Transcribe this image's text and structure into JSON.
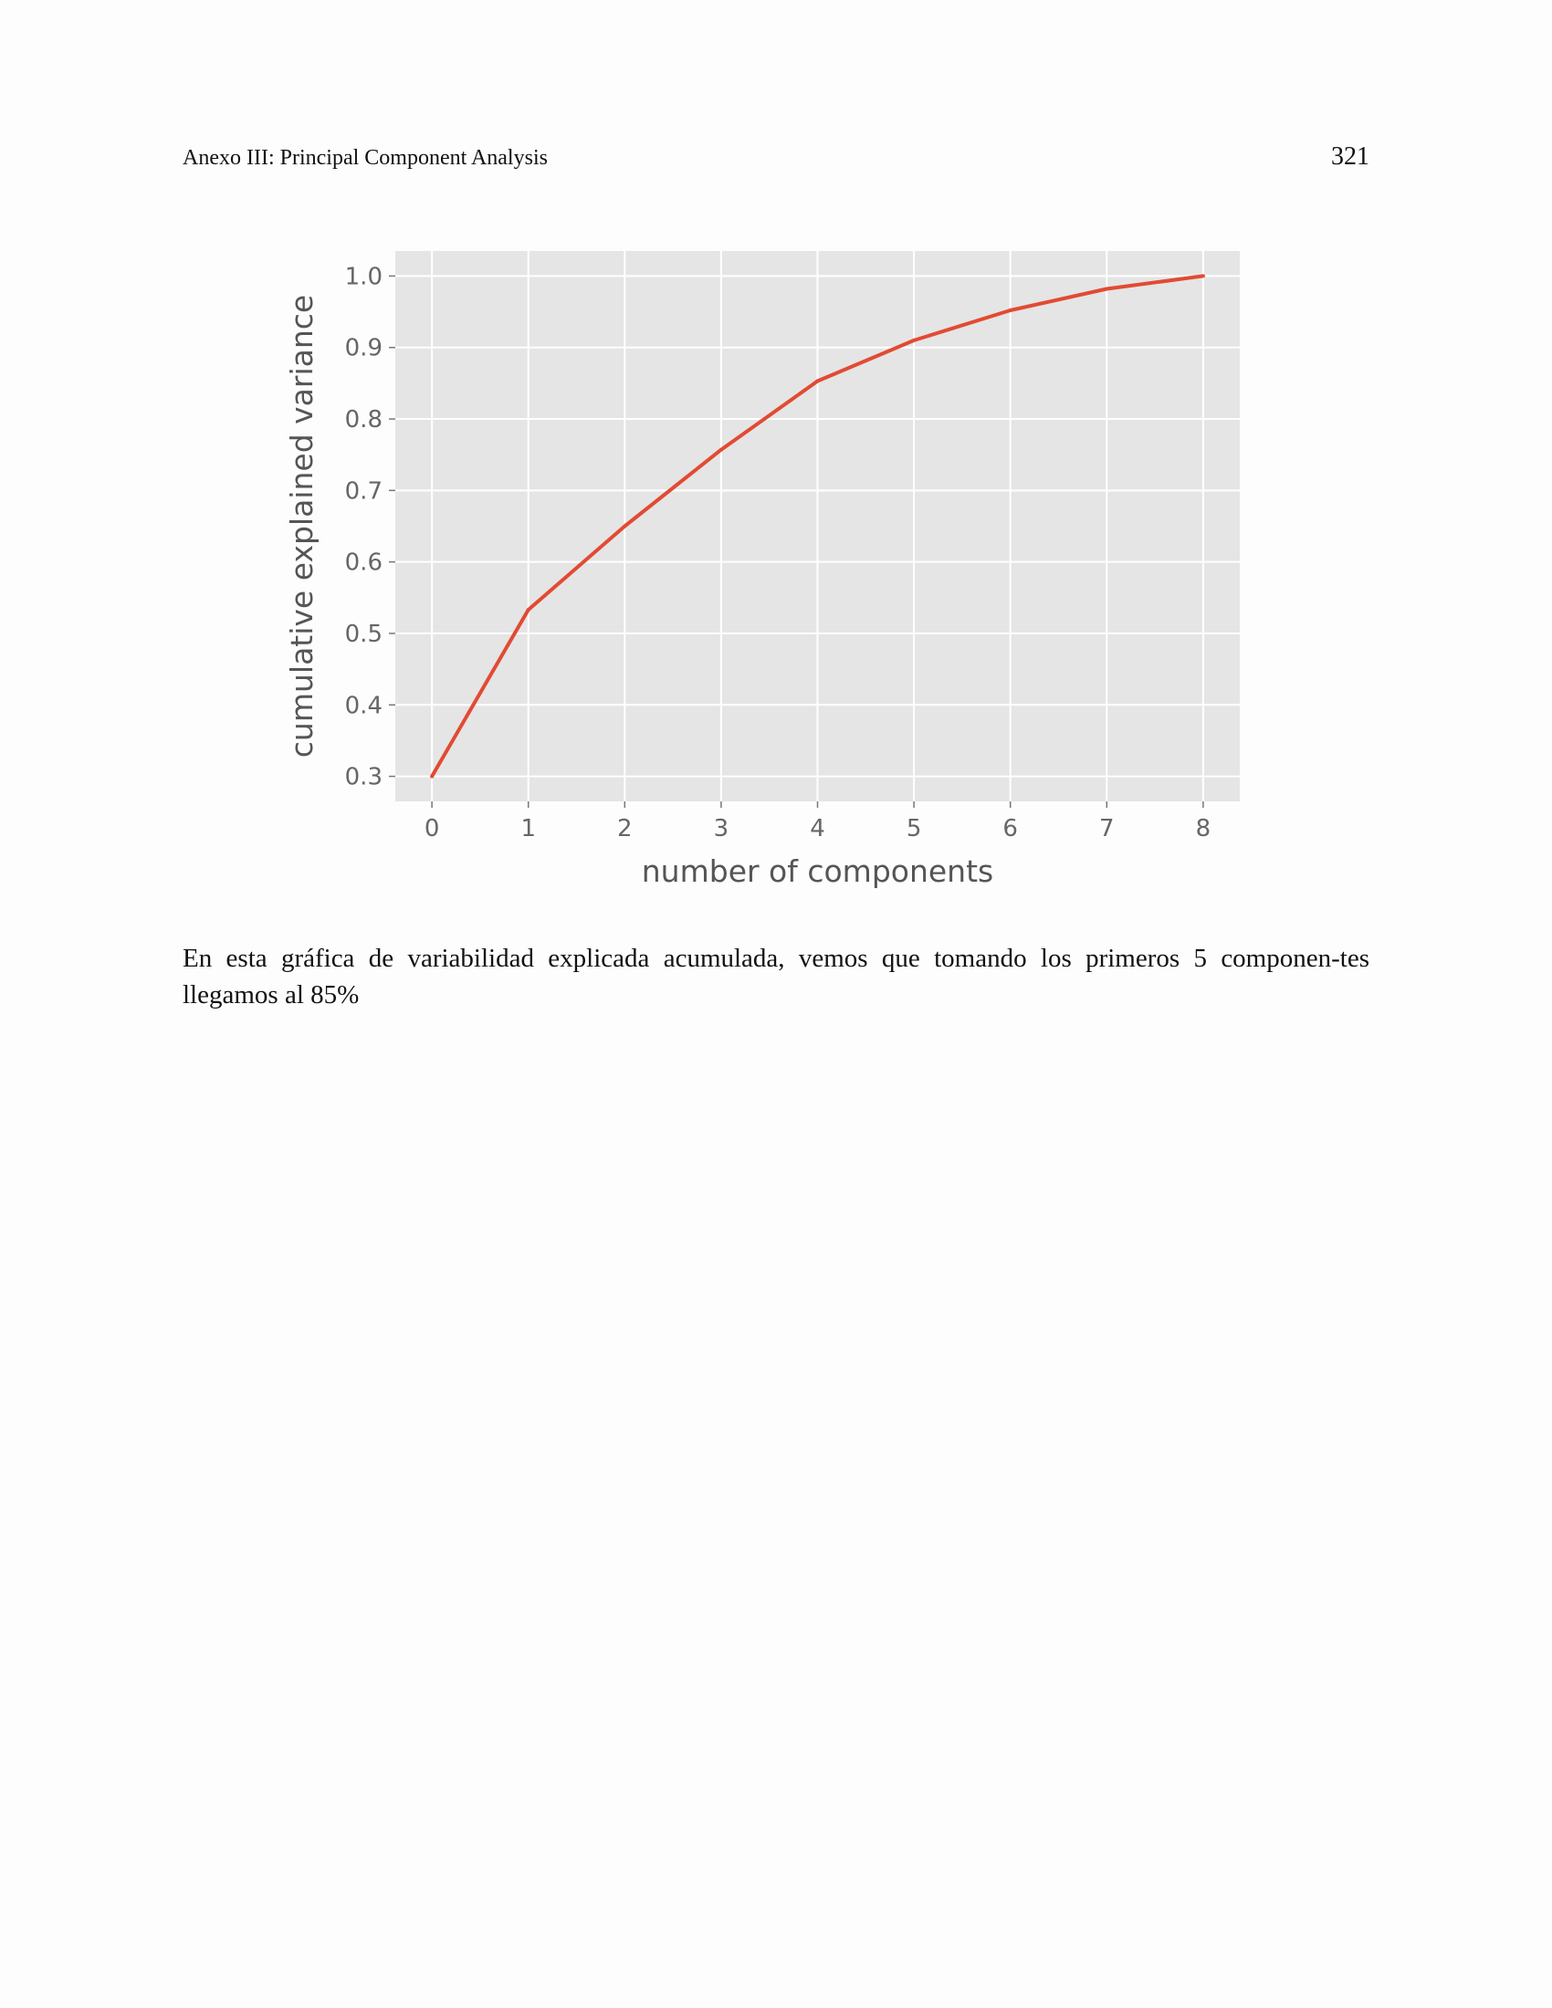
{
  "header": {
    "running_title": "Anexo III: Principal Component Analysis",
    "page_number": "321"
  },
  "chart_data": {
    "type": "line",
    "xlabel": "number of components",
    "ylabel": "cumulative explained variance",
    "x": [
      0,
      1,
      2,
      3,
      4,
      5,
      6,
      7,
      8
    ],
    "series": [
      {
        "values": [
          0.3,
          0.533,
          0.65,
          0.757,
          0.853,
          0.91,
          0.952,
          0.982,
          1.0
        ]
      }
    ],
    "xlim": [
      -0.38,
      8.38
    ],
    "ylim": [
      0.265,
      1.035
    ],
    "xticks": [
      "0",
      "1",
      "2",
      "3",
      "4",
      "5",
      "6",
      "7",
      "8"
    ],
    "yticks": [
      "0.3",
      "0.4",
      "0.5",
      "0.6",
      "0.7",
      "0.8",
      "0.9",
      "1.0"
    ],
    "grid": true,
    "colors": {
      "line": "#e24a33",
      "background": "#e5e5e5",
      "grid": "#ffffff"
    }
  },
  "body": {
    "paragraph": "En esta gráfica de variabilidad explicada acumulada, vemos que tomando los primeros 5 componen-tes llegamos al 85%"
  }
}
